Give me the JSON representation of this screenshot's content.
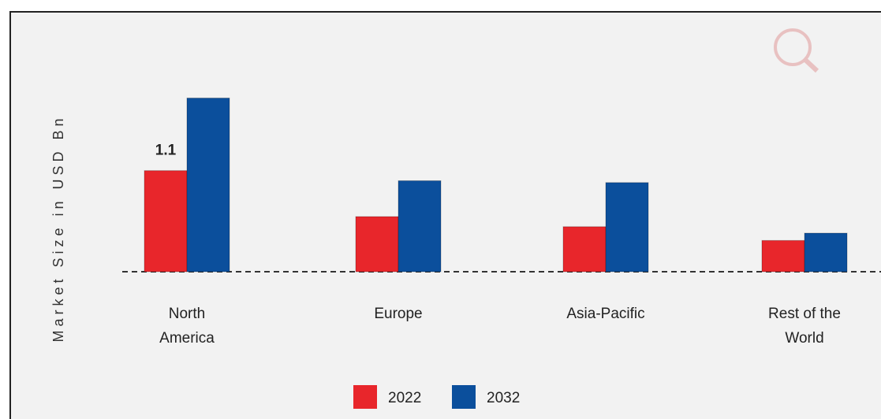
{
  "chart_data": {
    "type": "bar",
    "y_label": "Market Size in USD Bn",
    "categories": [
      "North America",
      "Europe",
      "Asia-Pacific",
      "Rest of the World"
    ],
    "series": [
      {
        "name": "2022",
        "color": "#e8262b",
        "values": [
          1.1,
          0.6,
          0.49,
          0.34
        ]
      },
      {
        "name": "2032",
        "color": "#0b4f9c",
        "values": [
          1.89,
          0.99,
          0.97,
          0.42
        ]
      }
    ],
    "data_labels": [
      {
        "series": 0,
        "index": 0
      }
    ],
    "ylim": [
      0,
      2.1
    ]
  }
}
